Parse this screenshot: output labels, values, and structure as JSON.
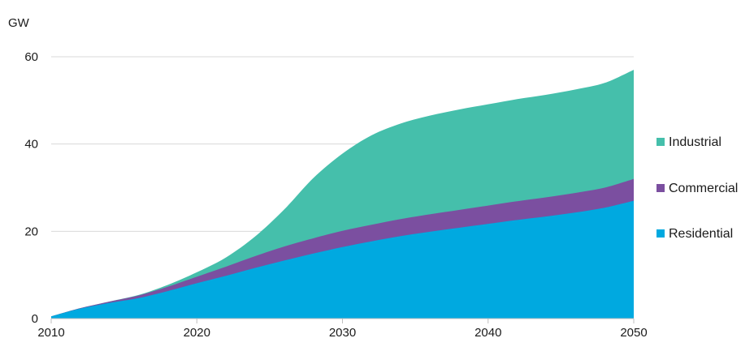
{
  "chart_data": {
    "type": "area",
    "stacked": true,
    "title": "",
    "xlabel": "",
    "ylabel": "GW",
    "xlim": [
      2010,
      2050
    ],
    "ylim": [
      0,
      60
    ],
    "x_ticks": [
      2010,
      2020,
      2030,
      2040,
      2050
    ],
    "y_ticks": [
      0,
      20,
      40,
      60
    ],
    "grid": "horizontal",
    "legend_position": "right",
    "x": [
      2010,
      2012,
      2014,
      2016,
      2018,
      2020,
      2022,
      2024,
      2026,
      2028,
      2030,
      2032,
      2034,
      2036,
      2038,
      2040,
      2042,
      2044,
      2046,
      2048,
      2050
    ],
    "series": [
      {
        "name": "Residential",
        "color": "#00a9e0",
        "values": [
          0.5,
          2.3,
          3.6,
          4.7,
          6.3,
          8.1,
          9.8,
          11.6,
          13.3,
          14.9,
          16.4,
          17.7,
          18.9,
          19.9,
          20.8,
          21.7,
          22.6,
          23.4,
          24.3,
          25.4,
          27.0
        ]
      },
      {
        "name": "Commercial",
        "color": "#7b4fa0",
        "values": [
          0.0,
          0.1,
          0.3,
          0.6,
          1.0,
          1.5,
          2.1,
          2.7,
          3.2,
          3.5,
          3.7,
          3.8,
          3.9,
          4.0,
          4.1,
          4.2,
          4.3,
          4.4,
          4.5,
          4.6,
          5.0
        ]
      },
      {
        "name": "Industrial",
        "color": "#45bfab",
        "values": [
          0.0,
          0.0,
          0.0,
          0.1,
          0.4,
          1.0,
          2.1,
          4.5,
          8.5,
          13.8,
          17.7,
          20.5,
          21.9,
          22.6,
          23.0,
          23.2,
          23.4,
          23.5,
          23.7,
          24.0,
          25.0
        ]
      }
    ]
  }
}
